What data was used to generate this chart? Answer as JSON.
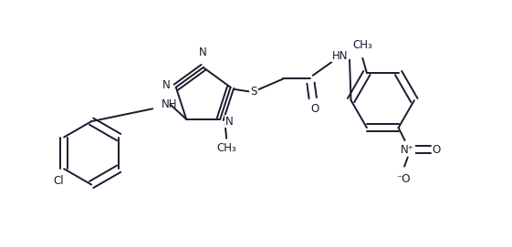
{
  "bg_color": "#ffffff",
  "line_color": "#1a1a2e",
  "line_width": 1.4,
  "font_size": 8.5,
  "figsize": [
    5.61,
    2.71
  ],
  "dpi": 100,
  "xlim": [
    -0.3,
    10.3
  ],
  "ylim": [
    -1.0,
    4.8
  ]
}
